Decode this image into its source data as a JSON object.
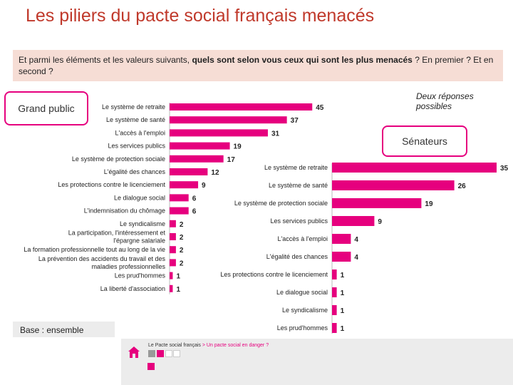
{
  "title": "Les piliers du pacte social français menacés",
  "question": {
    "prefix": "Et parmi les éléments et les valeurs suivants, ",
    "bold": "quels sont selon vous ceux qui sont les plus menacés",
    "suffix": " ? En premier ? Et en second ?"
  },
  "groups": {
    "grand_public": "Grand public",
    "senateurs": "Sénateurs"
  },
  "note": "Deux réponses possibles",
  "base": "Base : ensemble",
  "footer": {
    "text": "Le Pacte social français",
    "sep": " > ",
    "link": "Un pacte social en danger ?"
  },
  "colors": {
    "bar": "#e6007e",
    "title": "#c0392b",
    "question_bg": "#f6ddd5",
    "footer_bg": "#ececec"
  },
  "chart_data": [
    {
      "type": "bar",
      "orientation": "horizontal",
      "group": "Grand public",
      "categories": [
        "Le système de retraite",
        "Le système de santé",
        "L'accès à l'emploi",
        "Les services publics",
        "Le système de protection sociale",
        "L'égalité des chances",
        "Les protections contre le licenciement",
        "Le dialogue social",
        "L'indemnisation du chômage",
        "Le syndicalisme",
        "La participation, l'intéressement et l'épargne salariale",
        "La formation professionnelle tout au long de la vie",
        "La prévention des accidents du travail et des maladies professionnelles",
        "Les prud'hommes",
        "La liberté d'association"
      ],
      "values": [
        45,
        37,
        31,
        19,
        17,
        12,
        9,
        6,
        6,
        2,
        2,
        2,
        2,
        1,
        1
      ]
    },
    {
      "type": "bar",
      "orientation": "horizontal",
      "group": "Sénateurs",
      "categories": [
        "Le système de retraite",
        "Le système de santé",
        "Le système de protection sociale",
        "Les services publics",
        "L'accès à l'emploi",
        "L'égalité des chances",
        "Les protections contre le licenciement",
        "Le dialogue social",
        "Le syndicalisme",
        "Les prud'hommes"
      ],
      "values": [
        35,
        26,
        19,
        9,
        4,
        4,
        1,
        1,
        1,
        1
      ]
    }
  ]
}
